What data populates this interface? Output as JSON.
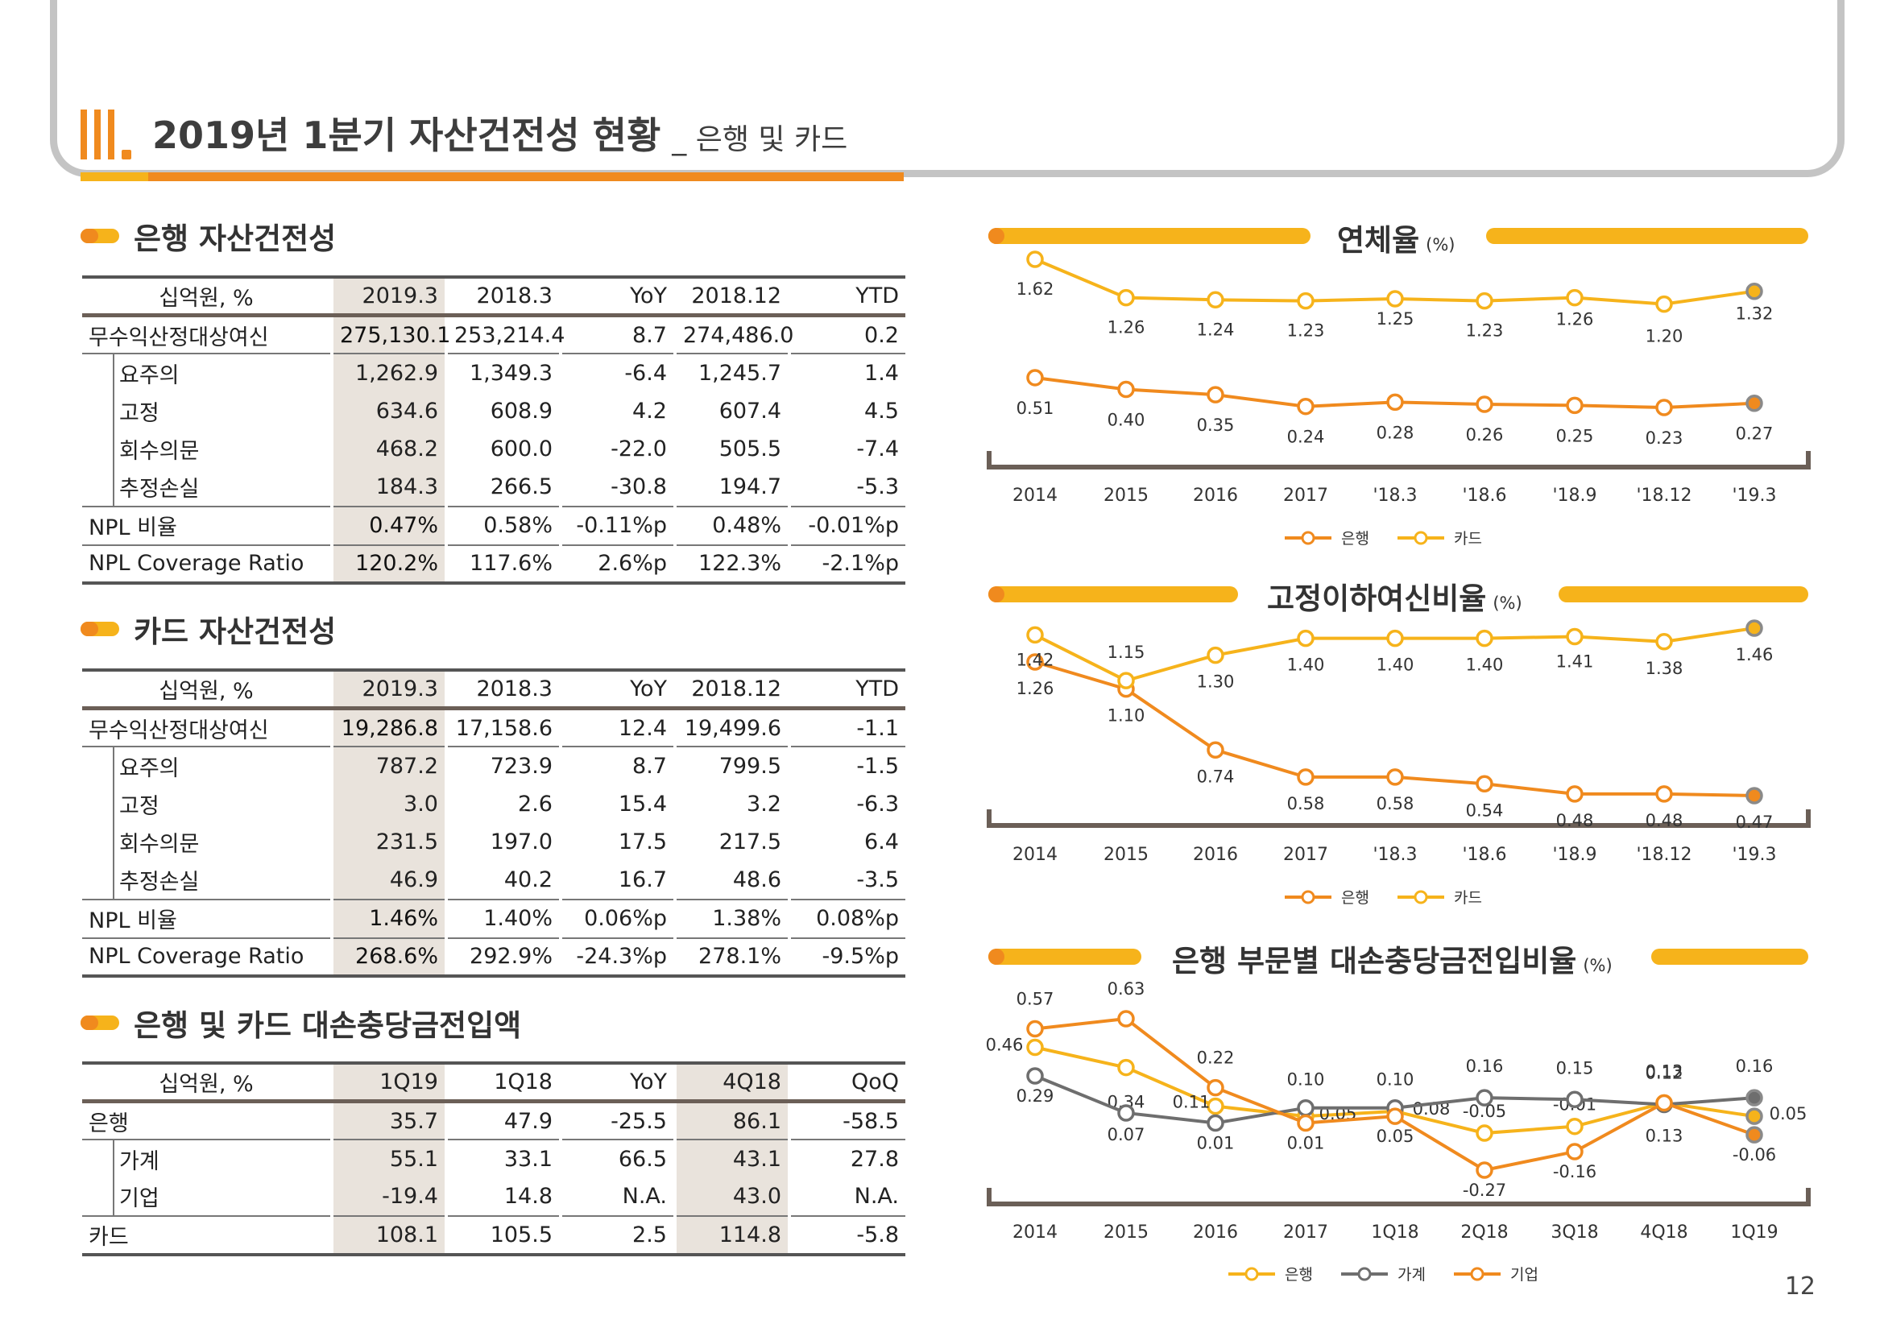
{
  "header": {
    "roman": "III.",
    "title": "2019년 1분기 자산건전성 현황",
    "subtitle": "_ 은행 및 카드"
  },
  "page_number": "12",
  "colors": {
    "orange": "#f08a1e",
    "yellow": "#f6b31b",
    "grey": "#6e6e6e",
    "shade": "#e9e3dc"
  },
  "bank_table": {
    "heading": "은행 자산건전성",
    "columns": [
      "십억원, %",
      "2019.3",
      "2018.3",
      "YoY",
      "2018.12",
      "YTD"
    ],
    "rows": [
      [
        "무수익산정대상여신",
        "275,130.1",
        "253,214.4",
        "8.7",
        "274,486.0",
        "0.2"
      ],
      [
        "요주의",
        "1,262.9",
        "1,349.3",
        "-6.4",
        "1,245.7",
        "1.4"
      ],
      [
        "고정",
        "634.6",
        "608.9",
        "4.2",
        "607.4",
        "4.5"
      ],
      [
        "회수의문",
        "468.2",
        "600.0",
        "-22.0",
        "505.5",
        "-7.4"
      ],
      [
        "추정손실",
        "184.3",
        "266.5",
        "-30.8",
        "194.7",
        "-5.3"
      ],
      [
        "NPL 비율",
        "0.47%",
        "0.58%",
        "-0.11%p",
        "0.48%",
        "-0.01%p"
      ],
      [
        "NPL Coverage Ratio",
        "120.2%",
        "117.6%",
        "2.6%p",
        "122.3%",
        "-2.1%p"
      ]
    ]
  },
  "card_table": {
    "heading": "카드 자산건전성",
    "columns": [
      "십억원, %",
      "2019.3",
      "2018.3",
      "YoY",
      "2018.12",
      "YTD"
    ],
    "rows": [
      [
        "무수익산정대상여신",
        "19,286.8",
        "17,158.6",
        "12.4",
        "19,499.6",
        "-1.1"
      ],
      [
        "요주의",
        "787.2",
        "723.9",
        "8.7",
        "799.5",
        "-1.5"
      ],
      [
        "고정",
        "3.0",
        "2.6",
        "15.4",
        "3.2",
        "-6.3"
      ],
      [
        "회수의문",
        "231.5",
        "197.0",
        "17.5",
        "217.5",
        "6.4"
      ],
      [
        "추정손실",
        "46.9",
        "40.2",
        "16.7",
        "48.6",
        "-3.5"
      ],
      [
        "NPL 비율",
        "1.46%",
        "1.40%",
        "0.06%p",
        "1.38%",
        "0.08%p"
      ],
      [
        "NPL Coverage Ratio",
        "268.6%",
        "292.9%",
        "-24.3%p",
        "278.1%",
        "-9.5%p"
      ]
    ]
  },
  "provision_table": {
    "heading": "은행 및 카드 대손충당금전입액",
    "columns": [
      "십억원, %",
      "1Q19",
      "1Q18",
      "YoY",
      "4Q18",
      "QoQ"
    ],
    "rows": [
      [
        "은행",
        "35.7",
        "47.9",
        "-25.5",
        "86.1",
        "-58.5"
      ],
      [
        "가계",
        "55.1",
        "33.1",
        "66.5",
        "43.1",
        "27.8"
      ],
      [
        "기업",
        "-19.4",
        "14.8",
        "N.A.",
        "43.0",
        "N.A."
      ],
      [
        "카드",
        "108.1",
        "105.5",
        "2.5",
        "114.8",
        "-5.8"
      ]
    ]
  },
  "chart_data": [
    {
      "type": "line",
      "title": "연체율",
      "unit": "(%)",
      "categories": [
        "2014",
        "2015",
        "2016",
        "2017",
        "'18.3",
        "'18.6",
        "'18.9",
        "'18.12",
        "'19.3"
      ],
      "series": [
        {
          "name": "은행",
          "color": "#f08a1e",
          "values": [
            0.51,
            0.4,
            0.35,
            0.24,
            0.28,
            0.26,
            0.25,
            0.23,
            0.27
          ],
          "labels": [
            "0.51",
            "0.40",
            "0.35",
            "0.24",
            "0.28",
            "0.26",
            "0.25",
            "0.23",
            "0.27"
          ]
        },
        {
          "name": "카드",
          "color": "#f6b31b",
          "values": [
            1.62,
            1.26,
            1.24,
            1.23,
            1.25,
            1.23,
            1.26,
            1.2,
            1.32
          ],
          "labels": [
            "1.62",
            "1.26",
            "1.24",
            "1.23",
            "1.25",
            "1.23",
            "1.26",
            "1.20",
            "1.32"
          ]
        }
      ],
      "legend": "bottom-center"
    },
    {
      "type": "line",
      "title": "고정이하여신비율",
      "unit": "(%)",
      "categories": [
        "2014",
        "2015",
        "2016",
        "2017",
        "'18.3",
        "'18.6",
        "'18.9",
        "'18.12",
        "'19.3"
      ],
      "series": [
        {
          "name": "은행",
          "color": "#f08a1e",
          "values": [
            1.26,
            1.1,
            0.74,
            0.58,
            0.58,
            0.54,
            0.48,
            0.48,
            0.47
          ],
          "labels": [
            "1.26",
            "1.10",
            "0.74",
            "0.58",
            "0.58",
            "0.54",
            "0.48",
            "0.48",
            "0.47"
          ]
        },
        {
          "name": "카드",
          "color": "#f6b31b",
          "values": [
            1.42,
            1.15,
            1.3,
            1.4,
            1.4,
            1.4,
            1.41,
            1.38,
            1.46
          ],
          "labels": [
            "1.42",
            "1.15",
            "1.30",
            "1.40",
            "1.40",
            "1.40",
            "1.41",
            "1.38",
            "1.46"
          ]
        }
      ],
      "legend": "bottom-center"
    },
    {
      "type": "line",
      "title": "은행 부문별 대손충당금전입비율",
      "unit": "(%)",
      "categories": [
        "2014",
        "2015",
        "2016",
        "2017",
        "1Q18",
        "2Q18",
        "3Q18",
        "4Q18",
        "1Q19"
      ],
      "series": [
        {
          "name": "은행",
          "color": "#f6b31b",
          "values": [
            0.46,
            0.34,
            0.11,
            0.05,
            0.08,
            -0.05,
            -0.01,
            0.13,
            0.05
          ],
          "labels": [
            "0.46",
            "0.34",
            "0.11",
            "0.05",
            "0.08",
            "-0.05",
            "-0.01",
            "0.13",
            "0.05"
          ]
        },
        {
          "name": "가계",
          "color": "#6e6e6e",
          "values": [
            0.29,
            0.07,
            0.01,
            0.1,
            0.1,
            0.16,
            0.15,
            0.12,
            0.16
          ],
          "labels": [
            "0.29",
            "0.07",
            "0.01",
            "0.10",
            "0.10",
            "0.16",
            "0.15",
            "0.12",
            "0.16"
          ]
        },
        {
          "name": "기업",
          "color": "#f08a1e",
          "values": [
            0.57,
            0.63,
            0.22,
            0.01,
            0.05,
            -0.27,
            -0.16,
            0.13,
            -0.06
          ],
          "labels": [
            "0.57",
            "0.63",
            "0.22",
            "0.01",
            "0.05",
            "-0.27",
            "-0.16",
            "0.13",
            "-0.06"
          ]
        }
      ],
      "legend": "bottom-center"
    }
  ]
}
